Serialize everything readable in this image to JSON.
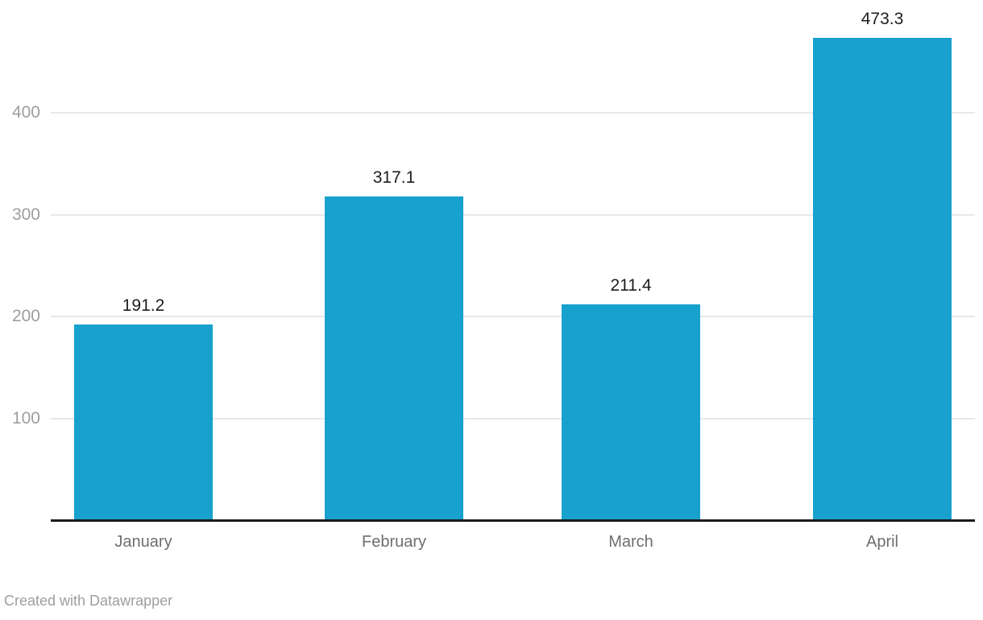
{
  "chart_data": {
    "type": "bar",
    "categories": [
      "January",
      "February",
      "March",
      "April"
    ],
    "values": [
      191.2,
      317.1,
      211.4,
      473.3
    ],
    "value_labels": [
      "191.2",
      "317.1",
      "211.4",
      "473.3"
    ],
    "title": "",
    "xlabel": "",
    "ylabel": "",
    "y_ticks": [
      100,
      200,
      300,
      400
    ],
    "ylim": [
      0,
      480
    ],
    "grid": "horizontal",
    "legend": "none"
  },
  "footer": {
    "attribution": "Created with Datawrapper"
  },
  "colors": {
    "bar": "#18a1cd",
    "grid": "#e8e8e8",
    "axis": "#1a1a1a",
    "tick_label": "#9e9e9e",
    "category_label": "#6e6e6e",
    "value_label": "#1d1d1d",
    "attribution": "#9e9e9e",
    "background": "#ffffff"
  }
}
